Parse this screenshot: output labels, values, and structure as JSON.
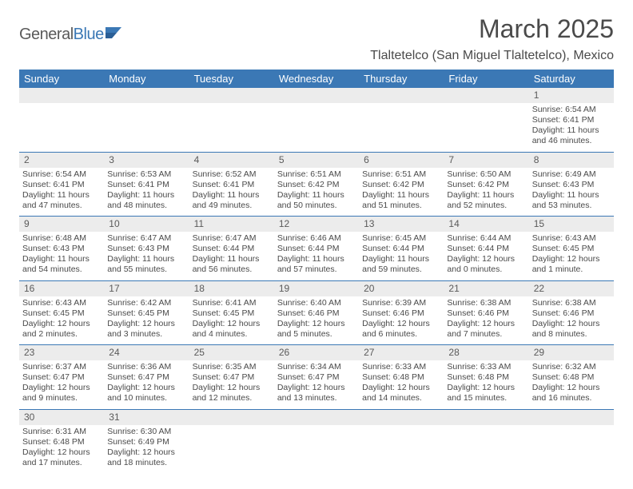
{
  "logo": {
    "word1": "General",
    "word2": "Blue"
  },
  "header": {
    "title": "March 2025",
    "location": "Tlaltetelco (San Miguel Tlaltetelco), Mexico"
  },
  "colors": {
    "header_bg": "#3b78b5",
    "header_fg": "#ffffff",
    "daynum_bg": "#ececec",
    "text": "#4a4a4a",
    "rule": "#3b78b5"
  },
  "daynames": [
    "Sunday",
    "Monday",
    "Tuesday",
    "Wednesday",
    "Thursday",
    "Friday",
    "Saturday"
  ],
  "weeks": [
    [
      null,
      null,
      null,
      null,
      null,
      null,
      {
        "n": "1",
        "sr": "Sunrise: 6:54 AM",
        "ss": "Sunset: 6:41 PM",
        "dl": "Daylight: 11 hours and 46 minutes."
      }
    ],
    [
      {
        "n": "2",
        "sr": "Sunrise: 6:54 AM",
        "ss": "Sunset: 6:41 PM",
        "dl": "Daylight: 11 hours and 47 minutes."
      },
      {
        "n": "3",
        "sr": "Sunrise: 6:53 AM",
        "ss": "Sunset: 6:41 PM",
        "dl": "Daylight: 11 hours and 48 minutes."
      },
      {
        "n": "4",
        "sr": "Sunrise: 6:52 AM",
        "ss": "Sunset: 6:41 PM",
        "dl": "Daylight: 11 hours and 49 minutes."
      },
      {
        "n": "5",
        "sr": "Sunrise: 6:51 AM",
        "ss": "Sunset: 6:42 PM",
        "dl": "Daylight: 11 hours and 50 minutes."
      },
      {
        "n": "6",
        "sr": "Sunrise: 6:51 AM",
        "ss": "Sunset: 6:42 PM",
        "dl": "Daylight: 11 hours and 51 minutes."
      },
      {
        "n": "7",
        "sr": "Sunrise: 6:50 AM",
        "ss": "Sunset: 6:42 PM",
        "dl": "Daylight: 11 hours and 52 minutes."
      },
      {
        "n": "8",
        "sr": "Sunrise: 6:49 AM",
        "ss": "Sunset: 6:43 PM",
        "dl": "Daylight: 11 hours and 53 minutes."
      }
    ],
    [
      {
        "n": "9",
        "sr": "Sunrise: 6:48 AM",
        "ss": "Sunset: 6:43 PM",
        "dl": "Daylight: 11 hours and 54 minutes."
      },
      {
        "n": "10",
        "sr": "Sunrise: 6:47 AM",
        "ss": "Sunset: 6:43 PM",
        "dl": "Daylight: 11 hours and 55 minutes."
      },
      {
        "n": "11",
        "sr": "Sunrise: 6:47 AM",
        "ss": "Sunset: 6:44 PM",
        "dl": "Daylight: 11 hours and 56 minutes."
      },
      {
        "n": "12",
        "sr": "Sunrise: 6:46 AM",
        "ss": "Sunset: 6:44 PM",
        "dl": "Daylight: 11 hours and 57 minutes."
      },
      {
        "n": "13",
        "sr": "Sunrise: 6:45 AM",
        "ss": "Sunset: 6:44 PM",
        "dl": "Daylight: 11 hours and 59 minutes."
      },
      {
        "n": "14",
        "sr": "Sunrise: 6:44 AM",
        "ss": "Sunset: 6:44 PM",
        "dl": "Daylight: 12 hours and 0 minutes."
      },
      {
        "n": "15",
        "sr": "Sunrise: 6:43 AM",
        "ss": "Sunset: 6:45 PM",
        "dl": "Daylight: 12 hours and 1 minute."
      }
    ],
    [
      {
        "n": "16",
        "sr": "Sunrise: 6:43 AM",
        "ss": "Sunset: 6:45 PM",
        "dl": "Daylight: 12 hours and 2 minutes."
      },
      {
        "n": "17",
        "sr": "Sunrise: 6:42 AM",
        "ss": "Sunset: 6:45 PM",
        "dl": "Daylight: 12 hours and 3 minutes."
      },
      {
        "n": "18",
        "sr": "Sunrise: 6:41 AM",
        "ss": "Sunset: 6:45 PM",
        "dl": "Daylight: 12 hours and 4 minutes."
      },
      {
        "n": "19",
        "sr": "Sunrise: 6:40 AM",
        "ss": "Sunset: 6:46 PM",
        "dl": "Daylight: 12 hours and 5 minutes."
      },
      {
        "n": "20",
        "sr": "Sunrise: 6:39 AM",
        "ss": "Sunset: 6:46 PM",
        "dl": "Daylight: 12 hours and 6 minutes."
      },
      {
        "n": "21",
        "sr": "Sunrise: 6:38 AM",
        "ss": "Sunset: 6:46 PM",
        "dl": "Daylight: 12 hours and 7 minutes."
      },
      {
        "n": "22",
        "sr": "Sunrise: 6:38 AM",
        "ss": "Sunset: 6:46 PM",
        "dl": "Daylight: 12 hours and 8 minutes."
      }
    ],
    [
      {
        "n": "23",
        "sr": "Sunrise: 6:37 AM",
        "ss": "Sunset: 6:47 PM",
        "dl": "Daylight: 12 hours and 9 minutes."
      },
      {
        "n": "24",
        "sr": "Sunrise: 6:36 AM",
        "ss": "Sunset: 6:47 PM",
        "dl": "Daylight: 12 hours and 10 minutes."
      },
      {
        "n": "25",
        "sr": "Sunrise: 6:35 AM",
        "ss": "Sunset: 6:47 PM",
        "dl": "Daylight: 12 hours and 12 minutes."
      },
      {
        "n": "26",
        "sr": "Sunrise: 6:34 AM",
        "ss": "Sunset: 6:47 PM",
        "dl": "Daylight: 12 hours and 13 minutes."
      },
      {
        "n": "27",
        "sr": "Sunrise: 6:33 AM",
        "ss": "Sunset: 6:48 PM",
        "dl": "Daylight: 12 hours and 14 minutes."
      },
      {
        "n": "28",
        "sr": "Sunrise: 6:33 AM",
        "ss": "Sunset: 6:48 PM",
        "dl": "Daylight: 12 hours and 15 minutes."
      },
      {
        "n": "29",
        "sr": "Sunrise: 6:32 AM",
        "ss": "Sunset: 6:48 PM",
        "dl": "Daylight: 12 hours and 16 minutes."
      }
    ],
    [
      {
        "n": "30",
        "sr": "Sunrise: 6:31 AM",
        "ss": "Sunset: 6:48 PM",
        "dl": "Daylight: 12 hours and 17 minutes."
      },
      {
        "n": "31",
        "sr": "Sunrise: 6:30 AM",
        "ss": "Sunset: 6:49 PM",
        "dl": "Daylight: 12 hours and 18 minutes."
      },
      null,
      null,
      null,
      null,
      null
    ]
  ]
}
